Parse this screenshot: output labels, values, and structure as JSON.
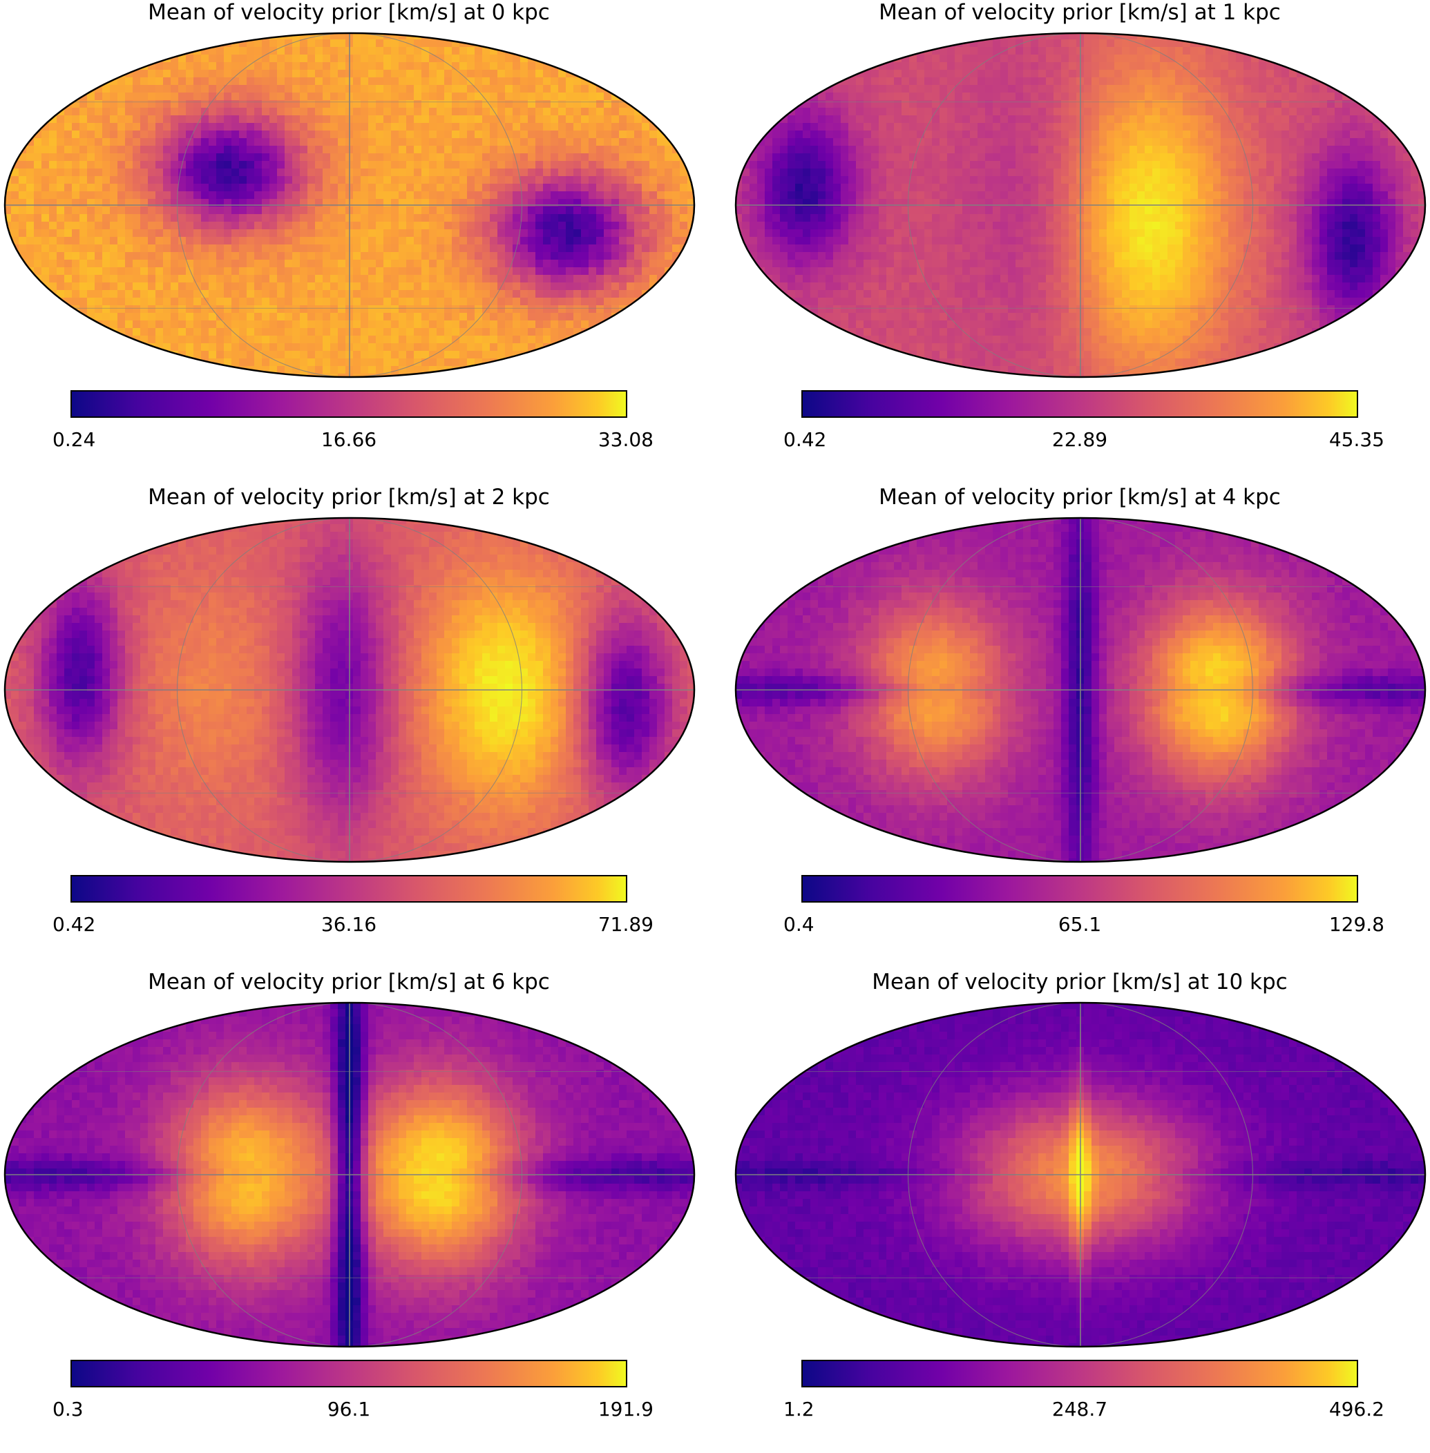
{
  "chart_data": [
    {
      "type": "heatmap",
      "projection": "mollweide",
      "title": "Mean of velocity prior [km/s] at 0 kpc",
      "colormap": "plasma",
      "clim": [
        0.24,
        33.08
      ],
      "colorbar_ticks": [
        "0.24",
        "16.66",
        "33.08"
      ],
      "pattern": "p0"
    },
    {
      "type": "heatmap",
      "projection": "mollweide",
      "title": "Mean of velocity prior [km/s] at 1 kpc",
      "colormap": "plasma",
      "clim": [
        0.42,
        45.35
      ],
      "colorbar_ticks": [
        "0.42",
        "22.89",
        "45.35"
      ],
      "pattern": "p1"
    },
    {
      "type": "heatmap",
      "projection": "mollweide",
      "title": "Mean of velocity prior [km/s] at 2 kpc",
      "colormap": "plasma",
      "clim": [
        0.42,
        71.89
      ],
      "colorbar_ticks": [
        "0.42",
        "36.16",
        "71.89"
      ],
      "pattern": "p2"
    },
    {
      "type": "heatmap",
      "projection": "mollweide",
      "title": "Mean of velocity prior [km/s] at 4 kpc",
      "colormap": "plasma",
      "clim": [
        0.4,
        129.8
      ],
      "colorbar_ticks": [
        "0.4",
        "65.1",
        "129.8"
      ],
      "pattern": "p4"
    },
    {
      "type": "heatmap",
      "projection": "mollweide",
      "title": "Mean of velocity prior [km/s] at 6 kpc",
      "colormap": "plasma",
      "clim": [
        0.3,
        191.9
      ],
      "colorbar_ticks": [
        "0.3",
        "96.1",
        "191.9"
      ],
      "pattern": "p6"
    },
    {
      "type": "heatmap",
      "projection": "mollweide",
      "title": "Mean of velocity prior [km/s] at 10 kpc",
      "colormap": "plasma",
      "clim": [
        1.2,
        496.2
      ],
      "colorbar_ticks": [
        "1.2",
        "248.7",
        "496.2"
      ],
      "pattern": "p10"
    }
  ]
}
